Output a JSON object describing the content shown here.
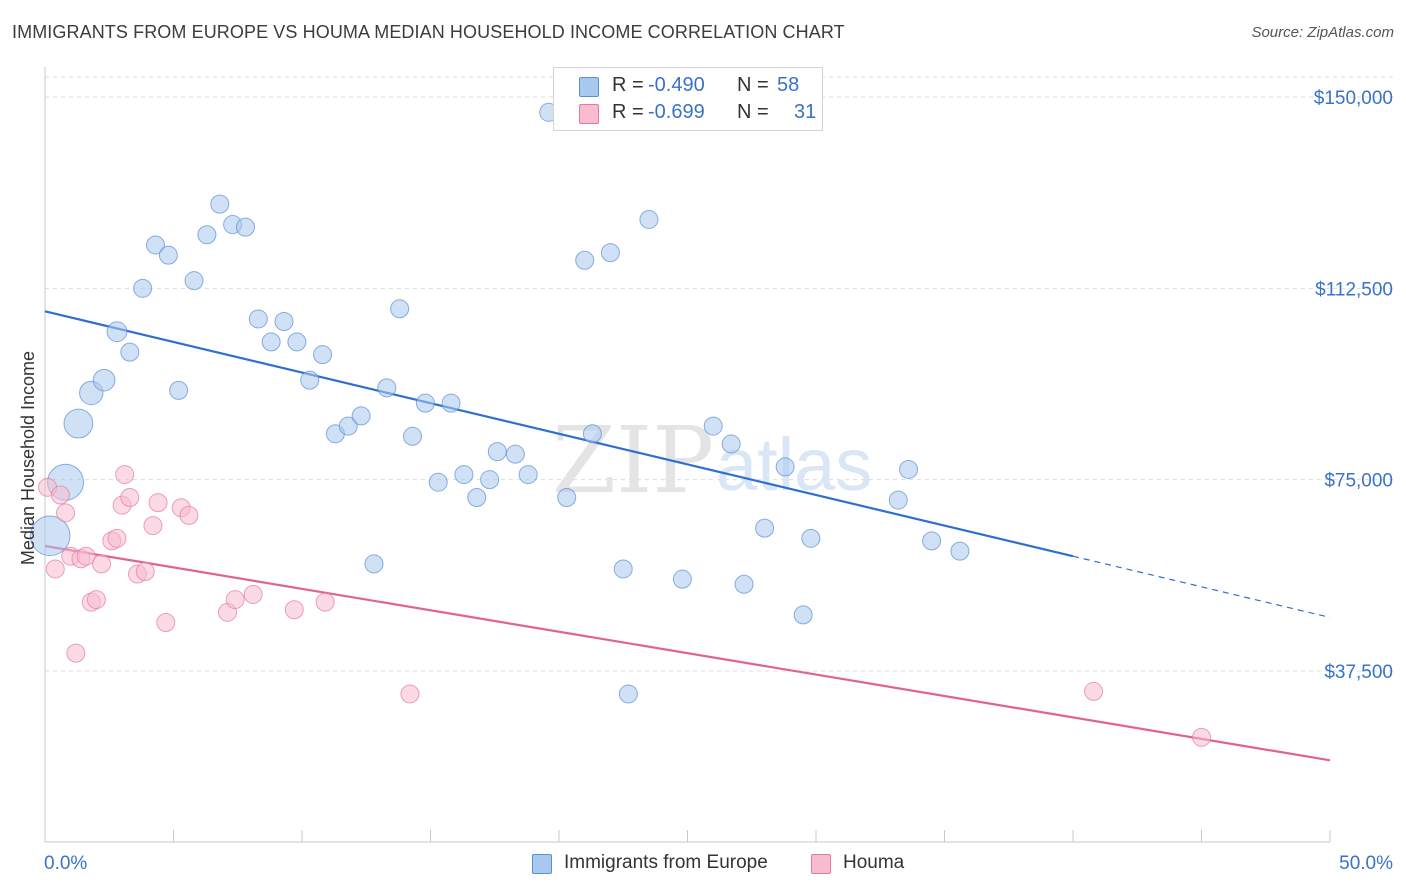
{
  "header": {
    "title": "IMMIGRANTS FROM EUROPE VS HOUMA MEDIAN HOUSEHOLD INCOME CORRELATION CHART",
    "source": "Source: ZipAtlas.com"
  },
  "watermark": {
    "zip": "ZIP",
    "atlas": "atlas"
  },
  "legend": {
    "rows": [
      {
        "r_label": "R =",
        "r_value": "-0.490",
        "n_label": "N =",
        "n_value": "58"
      },
      {
        "r_label": "R =",
        "r_value": "-0.699",
        "n_label": "N =",
        "n_value": "31"
      }
    ]
  },
  "bottom_legend": {
    "items": [
      {
        "label": "Immigrants from Europe"
      },
      {
        "label": "Houma"
      }
    ]
  },
  "colors": {
    "europe_fill": "#a9c8ef",
    "europe_stroke": "#5a8fd4",
    "europe_line": "#2f6fcf",
    "houma_fill": "#f7bcd0",
    "houma_stroke": "#e27a9e",
    "houma_line": "#e0638f",
    "axis_label": "#3a72c8",
    "grid": "#dcdcdc"
  },
  "chart_data": {
    "type": "scatter",
    "title": "IMMIGRANTS FROM EUROPE VS HOUMA MEDIAN HOUSEHOLD INCOME CORRELATION CHART",
    "xlabel": "",
    "ylabel": "Median Household Income",
    "xlim": [
      0,
      50
    ],
    "ylim": [
      0,
      153000
    ],
    "x_tick_labels": [
      "0.0%",
      "50.0%"
    ],
    "y_ticks": [
      37500,
      75000,
      112500,
      150000
    ],
    "y_tick_labels": [
      "$37,500",
      "$75,000",
      "$112,500",
      "$150,000"
    ],
    "grid": true,
    "legend_position": "top-center",
    "series": [
      {
        "name": "Immigrants from Europe",
        "R": -0.49,
        "N": 58,
        "trend": {
          "x": [
            0,
            40,
            50
          ],
          "y": [
            108000,
            60000,
            48000
          ],
          "solid_until_x": 40
        },
        "points": [
          [
            0.2,
            64000,
            2.2
          ],
          [
            0.8,
            74500,
            2.0
          ],
          [
            1.3,
            86000,
            1.6
          ],
          [
            1.8,
            92000,
            1.3
          ],
          [
            2.3,
            94500,
            1.2
          ],
          [
            2.8,
            104000,
            1.1
          ],
          [
            3.3,
            100000,
            1.0
          ],
          [
            3.8,
            112500,
            1.0
          ],
          [
            4.3,
            121000,
            1.0
          ],
          [
            4.8,
            119000,
            1.0
          ],
          [
            5.2,
            92500,
            1.0
          ],
          [
            5.8,
            114000,
            1.0
          ],
          [
            6.3,
            123000,
            1.0
          ],
          [
            6.8,
            129000,
            1.0
          ],
          [
            7.3,
            125000,
            1.0
          ],
          [
            7.8,
            124500,
            1.0
          ],
          [
            8.3,
            106500,
            1.0
          ],
          [
            8.8,
            102000,
            1.0
          ],
          [
            9.3,
            106000,
            1.0
          ],
          [
            9.8,
            102000,
            1.0
          ],
          [
            10.3,
            94500,
            1.0
          ],
          [
            10.8,
            99500,
            1.0
          ],
          [
            11.3,
            84000,
            1.0
          ],
          [
            11.8,
            85500,
            1.0
          ],
          [
            12.3,
            87500,
            1.0
          ],
          [
            12.8,
            58500,
            1.0
          ],
          [
            13.3,
            93000,
            1.0
          ],
          [
            13.8,
            108500,
            1.0
          ],
          [
            14.3,
            83500,
            1.0
          ],
          [
            14.8,
            90000,
            1.0
          ],
          [
            15.3,
            74500,
            1.0
          ],
          [
            15.8,
            90000,
            1.0
          ],
          [
            16.3,
            76000,
            1.0
          ],
          [
            16.8,
            71500,
            1.0
          ],
          [
            17.3,
            75000,
            1.0
          ],
          [
            17.6,
            80500,
            1.0
          ],
          [
            18.3,
            80000,
            1.0
          ],
          [
            18.8,
            76000,
            1.0
          ],
          [
            19.6,
            147000,
            1.0
          ],
          [
            20.3,
            71500,
            1.0
          ],
          [
            21.0,
            118000,
            1.0
          ],
          [
            21.3,
            84000,
            1.0
          ],
          [
            22.0,
            119500,
            1.0
          ],
          [
            22.5,
            57500,
            1.0
          ],
          [
            22.7,
            33000,
            1.0
          ],
          [
            23.5,
            126000,
            1.0
          ],
          [
            24.8,
            55500,
            1.0
          ],
          [
            26.0,
            85500,
            1.0
          ],
          [
            26.7,
            82000,
            1.0
          ],
          [
            27.2,
            54500,
            1.0
          ],
          [
            28.0,
            65500,
            1.0
          ],
          [
            28.8,
            77500,
            1.0
          ],
          [
            29.5,
            48500,
            1.0
          ],
          [
            29.8,
            63500,
            1.0
          ],
          [
            33.2,
            71000,
            1.0
          ],
          [
            33.6,
            77000,
            1.0
          ],
          [
            34.5,
            63000,
            1.0
          ],
          [
            35.6,
            61000,
            1.0
          ]
        ]
      },
      {
        "name": "Houma",
        "R": -0.699,
        "N": 31,
        "trend": {
          "x": [
            0,
            50
          ],
          "y": [
            62000,
            20000
          ]
        },
        "points": [
          [
            0.1,
            73500,
            1.0
          ],
          [
            0.4,
            57500,
            1.0
          ],
          [
            0.6,
            72000,
            1.0
          ],
          [
            0.8,
            68500,
            1.0
          ],
          [
            1.0,
            60000,
            1.0
          ],
          [
            1.2,
            41000,
            1.0
          ],
          [
            1.4,
            59500,
            1.0
          ],
          [
            1.6,
            60000,
            1.0
          ],
          [
            1.8,
            51000,
            1.0
          ],
          [
            2.0,
            51500,
            1.0
          ],
          [
            2.2,
            58500,
            1.0
          ],
          [
            2.6,
            63000,
            1.0
          ],
          [
            2.8,
            63500,
            1.0
          ],
          [
            3.1,
            76000,
            1.0
          ],
          [
            3.0,
            70000,
            1.0
          ],
          [
            3.3,
            71500,
            1.0
          ],
          [
            3.6,
            56500,
            1.0
          ],
          [
            3.9,
            57000,
            1.0
          ],
          [
            4.2,
            66000,
            1.0
          ],
          [
            4.4,
            70500,
            1.0
          ],
          [
            4.7,
            47000,
            1.0
          ],
          [
            5.3,
            69500,
            1.0
          ],
          [
            5.6,
            68000,
            1.0
          ],
          [
            7.1,
            49000,
            1.0
          ],
          [
            7.4,
            51500,
            1.0
          ],
          [
            8.1,
            52500,
            1.0
          ],
          [
            9.7,
            49500,
            1.0
          ],
          [
            10.9,
            51000,
            1.0
          ],
          [
            14.2,
            33000,
            1.0
          ],
          [
            40.8,
            33500,
            1.0
          ],
          [
            45.0,
            24500,
            1.0
          ]
        ]
      }
    ]
  }
}
